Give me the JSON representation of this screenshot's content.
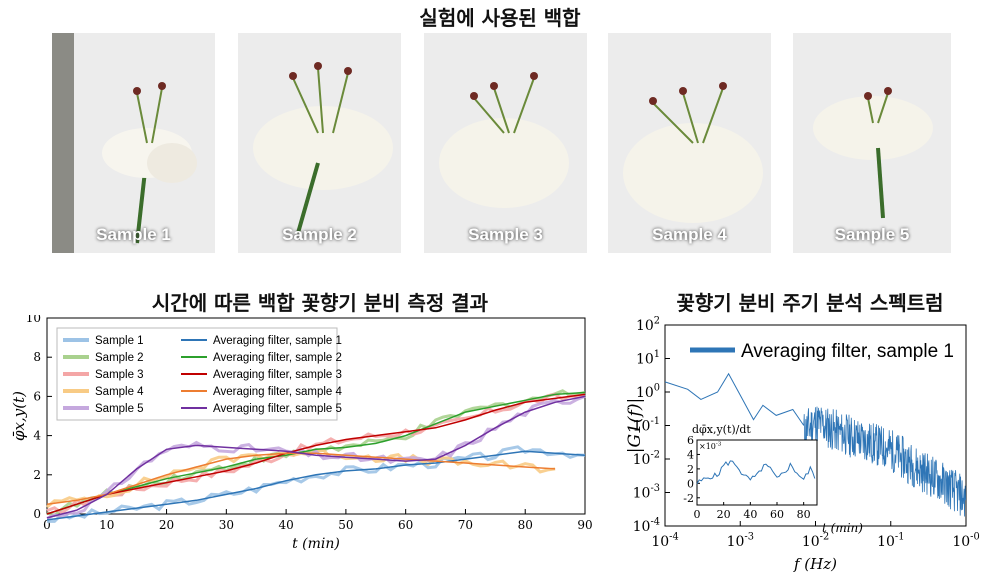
{
  "top_title": "실험에 사용된 백합",
  "samples": [
    "Sample 1",
    "Sample 2",
    "Sample 3",
    "Sample 4",
    "Sample 5"
  ],
  "chart_data": [
    {
      "type": "line",
      "title": "시간에 따른 백합 꽃향기 분비 측정 결과",
      "xlabel": "t (min)",
      "ylabel": "φ̄x,y(t)",
      "xlim": [
        0,
        90
      ],
      "ylim": [
        0,
        10
      ],
      "xticks": [
        0,
        10,
        20,
        30,
        40,
        50,
        60,
        70,
        80,
        90
      ],
      "yticks": [
        0,
        2,
        4,
        6,
        8,
        10
      ],
      "legend_position": "top-left",
      "x": [
        0,
        5,
        10,
        15,
        20,
        25,
        30,
        35,
        40,
        45,
        50,
        55,
        60,
        65,
        70,
        75,
        80,
        85,
        90
      ],
      "series": [
        {
          "name": "Sample 1",
          "color": "#9dc3e6",
          "values": [
            -0.3,
            -0.1,
            0.1,
            0.3,
            0.5,
            0.7,
            1.0,
            1.3,
            1.7,
            2.0,
            2.2,
            2.3,
            2.5,
            2.6,
            2.8,
            3.0,
            3.3,
            3.2,
            3.0
          ]
        },
        {
          "name": "Sample 2",
          "color": "#a9d18e",
          "values": [
            0.0,
            0.5,
            1.0,
            1.4,
            1.8,
            2.1,
            2.4,
            2.8,
            3.0,
            3.3,
            3.4,
            3.6,
            4.0,
            4.6,
            5.2,
            5.5,
            5.8,
            6.1,
            6.2
          ]
        },
        {
          "name": "Sample 3",
          "color": "#f4a6a6",
          "values": [
            0.0,
            0.5,
            1.0,
            1.3,
            1.6,
            1.9,
            2.2,
            2.6,
            3.1,
            3.5,
            3.8,
            4.0,
            4.2,
            4.4,
            4.8,
            5.3,
            5.7,
            5.9,
            6.1
          ]
        },
        {
          "name": "Sample 4",
          "color": "#f8cb85",
          "values": [
            0.5,
            0.7,
            1.0,
            1.5,
            2.0,
            2.4,
            2.8,
            3.0,
            3.1,
            3.1,
            3.0,
            2.9,
            2.8,
            2.7,
            2.6,
            2.5,
            2.4,
            2.3,
            null
          ]
        },
        {
          "name": "Sample 5",
          "color": "#c5a8de",
          "values": [
            -0.2,
            0.2,
            1.0,
            2.3,
            3.3,
            3.5,
            3.4,
            3.3,
            3.2,
            3.0,
            2.9,
            2.8,
            2.7,
            2.8,
            3.5,
            4.4,
            5.2,
            5.7,
            6.0
          ]
        },
        {
          "name": "Averaging filter, sample 1",
          "color": "#2e75b6",
          "values": [
            -0.3,
            -0.1,
            0.1,
            0.3,
            0.5,
            0.7,
            1.0,
            1.3,
            1.7,
            2.0,
            2.2,
            2.3,
            2.5,
            2.6,
            2.8,
            3.0,
            3.2,
            3.1,
            3.0
          ]
        },
        {
          "name": "Averaging filter, sample 2",
          "color": "#2ca02c",
          "values": [
            0.0,
            0.5,
            1.0,
            1.4,
            1.8,
            2.1,
            2.4,
            2.8,
            3.0,
            3.3,
            3.4,
            3.6,
            4.0,
            4.6,
            5.2,
            5.5,
            5.8,
            6.1,
            6.2
          ]
        },
        {
          "name": "Averaging filter, sample 3",
          "color": "#c00000",
          "values": [
            0.0,
            0.5,
            1.0,
            1.3,
            1.6,
            1.9,
            2.2,
            2.6,
            3.1,
            3.5,
            3.8,
            4.0,
            4.2,
            4.4,
            4.8,
            5.3,
            5.7,
            5.9,
            6.1
          ]
        },
        {
          "name": "Averaging filter, sample 4",
          "color": "#ed7d31",
          "values": [
            0.5,
            0.7,
            1.0,
            1.5,
            2.0,
            2.4,
            2.8,
            3.0,
            3.1,
            3.1,
            3.0,
            2.9,
            2.8,
            2.7,
            2.6,
            2.5,
            2.4,
            2.3,
            null
          ]
        },
        {
          "name": "Averaging filter, sample 5",
          "color": "#7030a0",
          "values": [
            -0.2,
            0.2,
            1.0,
            2.3,
            3.3,
            3.5,
            3.4,
            3.3,
            3.2,
            3.0,
            2.9,
            2.8,
            2.7,
            2.8,
            3.5,
            4.4,
            5.2,
            5.7,
            6.0
          ]
        }
      ]
    },
    {
      "type": "line",
      "title": "꽃향기 분비 주기 분석 스펙트럼",
      "xlabel": "f (Hz)",
      "ylabel": "|G1(f)|",
      "x_scale": "log",
      "y_scale": "log",
      "xticks": [
        "10-4",
        "10-3",
        "10-2",
        "10-1",
        "10-0"
      ],
      "yticks": [
        "10-4",
        "10-3",
        "10-2",
        "10-1",
        "100",
        "101",
        "102"
      ],
      "legend_position": "top-right",
      "series": [
        {
          "name": "Averaging filter, sample 1",
          "color": "#2e75b6",
          "x": [
            0.0001,
            0.0002,
            0.0003,
            0.0005,
            0.0007,
            0.001,
            0.0015,
            0.002,
            0.003,
            0.005,
            0.007,
            0.01,
            0.02,
            0.05,
            0.1,
            0.2,
            0.5,
            1.0
          ],
          "values": [
            2.0,
            1.2,
            0.6,
            1.0,
            3.5,
            0.8,
            0.15,
            0.4,
            0.2,
            0.3,
            0.1,
            0.2,
            0.1,
            0.05,
            0.03,
            0.01,
            0.003,
            0.001
          ]
        }
      ],
      "inset": {
        "ylabel": "dφ̄x,y(t)/dt",
        "exponent": "×10-3",
        "xlabel": "t (min)",
        "xticks": [
          0,
          20,
          40,
          60,
          80
        ],
        "yticks": [
          -2,
          0,
          2,
          4,
          6
        ],
        "xlim": [
          0,
          90
        ],
        "ylim": [
          -3,
          6
        ],
        "x": [
          0,
          5,
          10,
          15,
          20,
          25,
          30,
          35,
          40,
          45,
          50,
          55,
          60,
          65,
          70,
          75,
          80,
          85,
          90
        ],
        "values": [
          0.0,
          0.5,
          1.0,
          1.0,
          2.5,
          3.0,
          2.5,
          1.0,
          0.5,
          1.0,
          2.5,
          2.0,
          0.5,
          1.5,
          2.5,
          1.5,
          0.5,
          2.0,
          0.5
        ]
      }
    }
  ]
}
